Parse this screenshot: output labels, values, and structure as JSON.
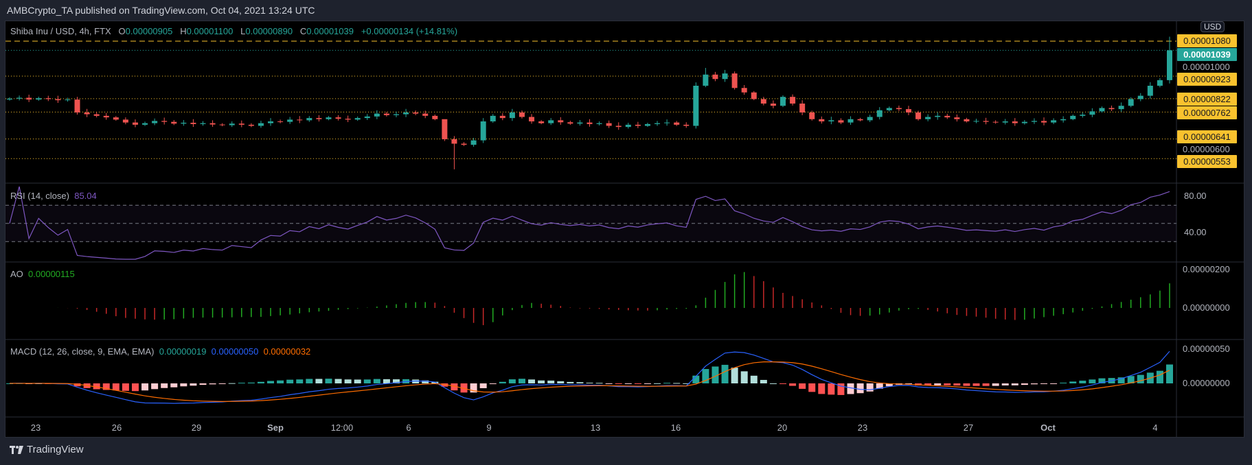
{
  "header": {
    "title": "AMBCrypto_TA published on TradingView.com, Oct 04, 2021 13:24 UTC"
  },
  "legend": {
    "symbol": "Shiba Inu / USD, 4h, FTX",
    "o_label": "O",
    "o": "0.00000905",
    "h_label": "H",
    "h": "0.00001100",
    "l_label": "L",
    "l": "0.00000890",
    "c_label": "C",
    "c": "0.00001039",
    "change": "+0.00000134 (+14.81%)"
  },
  "price_axis": {
    "currency": "USD",
    "current": "0.00001039",
    "levels": [
      "0.00001080",
      "0.00000923",
      "0.00000822",
      "0.00000762",
      "0.00000641",
      "0.00000553"
    ],
    "grid_labels": [
      "0.00001000",
      "0.00000600"
    ]
  },
  "rsi": {
    "label": "RSI (14, close)",
    "value": "85.04",
    "ticks": [
      "80.00",
      "40.00"
    ]
  },
  "ao": {
    "label": "AO",
    "value": "0.00000115",
    "ticks": [
      "0.00000200",
      "0.00000000"
    ]
  },
  "macd": {
    "label": "MACD (12, 26, close, 9, EMA, EMA)",
    "hist": "0.00000019",
    "macd": "0.00000050",
    "signal": "0.00000032",
    "ticks": [
      "0.00000050",
      "0.00000000"
    ]
  },
  "time_axis": [
    "23",
    "26",
    "29",
    "Sep",
    "12:00",
    "6",
    "9",
    "13",
    "16",
    "20",
    "23",
    "27",
    "Oct",
    "4"
  ],
  "footer": {
    "brand": "TradingView"
  },
  "colors": {
    "up": "#26a69a",
    "down": "#ef5350",
    "rsi": "#7e57c2",
    "ao_up": "#22ab22",
    "ao_down": "#c62828",
    "macd": "#2962ff",
    "signal": "#ff6d00",
    "level": "#f9c22e"
  },
  "chart_data": {
    "type": "candlestick",
    "unit": "1e-8 USD",
    "closes": [
      822,
      826,
      818,
      824,
      820,
      815,
      818,
      760,
      752,
      745,
      738,
      728,
      715,
      705,
      712,
      722,
      718,
      710,
      714,
      708,
      712,
      706,
      703,
      710,
      705,
      700,
      712,
      720,
      718,
      728,
      725,
      735,
      730,
      738,
      732,
      728,
      735,
      742,
      755,
      748,
      752,
      760,
      755,
      745,
      730,
      640,
      620,
      615,
      635,
      720,
      745,
      735,
      760,
      740,
      720,
      712,
      725,
      716,
      710,
      715,
      708,
      712,
      700,
      695,
      705,
      700,
      708,
      712,
      715,
      705,
      700,
      880,
      930,
      910,
      935,
      870,
      850,
      820,
      800,
      790,
      830,
      800,
      760,
      730,
      720,
      725,
      715,
      730,
      725,
      740,
      770,
      780,
      775,
      760,
      730,
      740,
      745,
      738,
      730,
      720,
      722,
      718,
      715,
      720,
      712,
      718,
      722,
      715,
      725,
      730,
      745,
      750,
      765,
      780,
      775,
      790,
      820,
      835,
      880,
      905,
      1039
    ],
    "last_candle": {
      "open": 905,
      "high": 1100,
      "low": 890,
      "close": 1039
    },
    "horizontal_levels": [
      1080,
      1039,
      923,
      822,
      762,
      641,
      553
    ],
    "price_range": [
      520,
      1150
    ],
    "rsi_range": [
      15,
      95
    ],
    "rsi_bands": [
      30,
      50,
      70
    ],
    "indicators": [
      "RSI 14",
      "AO",
      "MACD 12 26 9"
    ]
  }
}
